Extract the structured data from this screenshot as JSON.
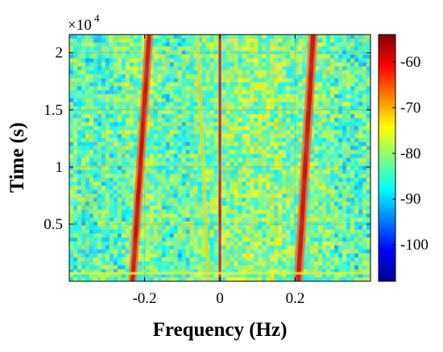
{
  "chart_data": {
    "type": "heatmap",
    "title": "",
    "xlabel": "Frequency (Hz)",
    "ylabel": "Time (s)",
    "xlim": [
      -0.4,
      0.4
    ],
    "ylim": [
      0,
      21600
    ],
    "y_multiplier": {
      "base": "×10",
      "exponent": "4"
    },
    "xticks": [
      {
        "value": -0.2,
        "label": "-0.2"
      },
      {
        "value": 0,
        "label": "0"
      },
      {
        "value": 0.2,
        "label": "0.2"
      }
    ],
    "yticks": [
      {
        "value": 5000,
        "label": "0.5"
      },
      {
        "value": 10000,
        "label": "1"
      },
      {
        "value": 15000,
        "label": "1.5"
      },
      {
        "value": 20000,
        "label": "2"
      }
    ],
    "colorbar": {
      "colormap": "jet",
      "range": [
        -108,
        -54
      ],
      "ticks": [
        {
          "value": -60,
          "label": "-60"
        },
        {
          "value": -70,
          "label": "-70"
        },
        {
          "value": -80,
          "label": "-80"
        },
        {
          "value": -90,
          "label": "-90"
        },
        {
          "value": -100,
          "label": "-100"
        }
      ]
    },
    "background_level_db": -82,
    "features": [
      {
        "name": "left-line",
        "freq_start": -0.232,
        "freq_end": -0.188,
        "level_db": -58,
        "width_hz": 0.022
      },
      {
        "name": "center-line",
        "freq_start": 0.0,
        "freq_end": 0.0,
        "level_db": -56,
        "width_hz": 0.008
      },
      {
        "name": "right-line",
        "freq_start": 0.208,
        "freq_end": 0.248,
        "level_db": -58,
        "width_hz": 0.024
      },
      {
        "name": "faint-line",
        "freq_start": -0.03,
        "freq_end": -0.06,
        "level_db": -72,
        "width_hz": 0.01
      },
      {
        "name": "bottom-row",
        "time": 700,
        "level_db": -76,
        "height_s": 250
      }
    ],
    "grid": true
  }
}
